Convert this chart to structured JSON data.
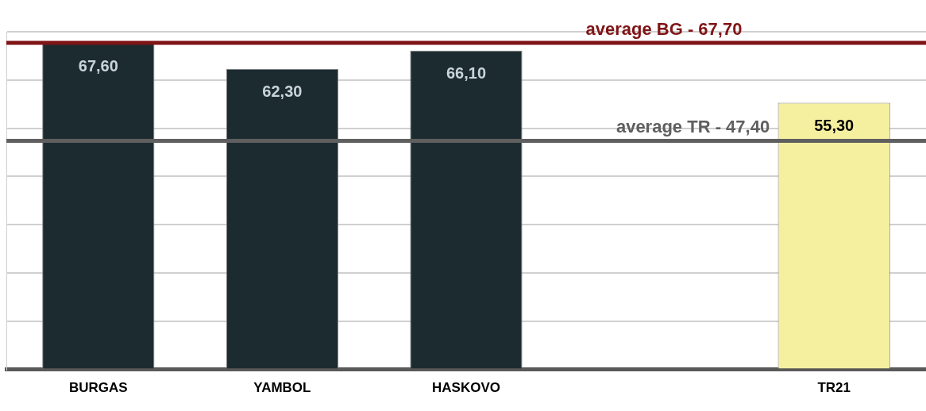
{
  "chart_data": {
    "type": "bar",
    "categories": [
      "BURGAS",
      "YAMBOL",
      "HASKOVO",
      null,
      "TR21"
    ],
    "values": [
      67.6,
      62.3,
      66.1,
      null,
      55.3
    ],
    "colors": [
      "#1c2b30",
      "#1c2b30",
      "#1c2b30",
      "#1c2b30",
      "#f5f0a0"
    ],
    "value_labels": [
      "67,60",
      "62,30",
      "66,10",
      null,
      "55,30"
    ],
    "ylim": [
      0,
      70
    ],
    "yticks": [
      {
        "value": 0,
        "label": null
      },
      {
        "value": 10,
        "label": null
      },
      {
        "value": 20,
        "label": null
      },
      {
        "value": 30,
        "label": null
      },
      {
        "value": 40,
        "label": null
      },
      {
        "value": 50,
        "label": null
      },
      {
        "value": 60,
        "label": null
      },
      {
        "value": 70,
        "label": null
      }
    ],
    "grid": "y",
    "tick_labels": "x",
    "legend": false,
    "ref_lines": [
      {
        "axis": "y",
        "value": 67.7,
        "label": "average BG - 67,70",
        "color": "#7f1416"
      },
      {
        "axis": "y",
        "value": 47.4,
        "label": "average TR - 47,40",
        "color": "#5f5f5f"
      }
    ]
  }
}
